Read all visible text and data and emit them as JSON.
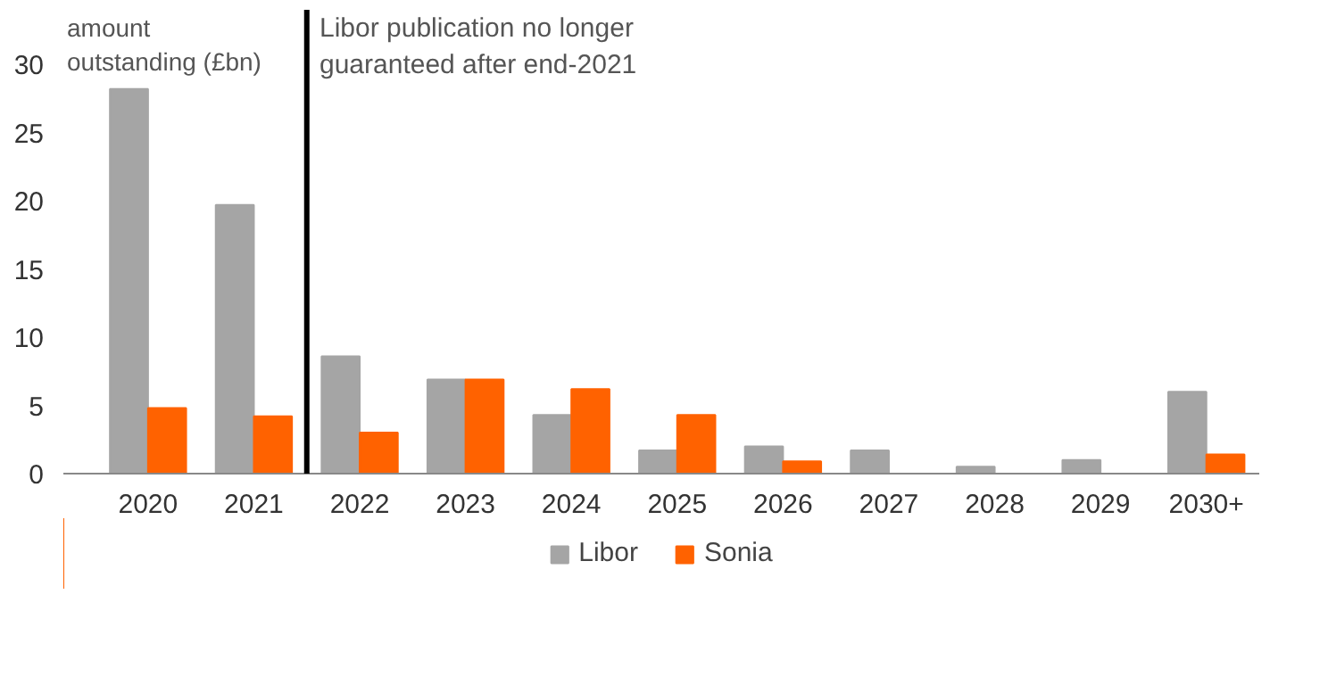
{
  "chart_data": {
    "type": "bar",
    "ylabel": "amount outstanding (£bn)",
    "categories": [
      "2020",
      "2021",
      "2022",
      "2023",
      "2024",
      "2025",
      "2026",
      "2027",
      "2028",
      "2029",
      "2030+"
    ],
    "series": [
      {
        "name": "Libor",
        "color": "#a5a5a5",
        "values": [
          28.2,
          19.7,
          8.6,
          6.9,
          4.3,
          1.7,
          2.0,
          1.7,
          0.5,
          1.0,
          6.0
        ]
      },
      {
        "name": "Sonia",
        "color": "#ff6200",
        "values": [
          4.8,
          4.2,
          3.0,
          6.9,
          6.2,
          4.3,
          0.9,
          0,
          0,
          0,
          1.4
        ]
      }
    ],
    "ylim": [
      0,
      34
    ],
    "yticks": [
      0,
      5,
      10,
      15,
      20,
      25,
      30
    ],
    "grid": false,
    "legend": "bottom",
    "annotations": [
      "Libor publication no longer guaranteed after end-2021"
    ]
  }
}
